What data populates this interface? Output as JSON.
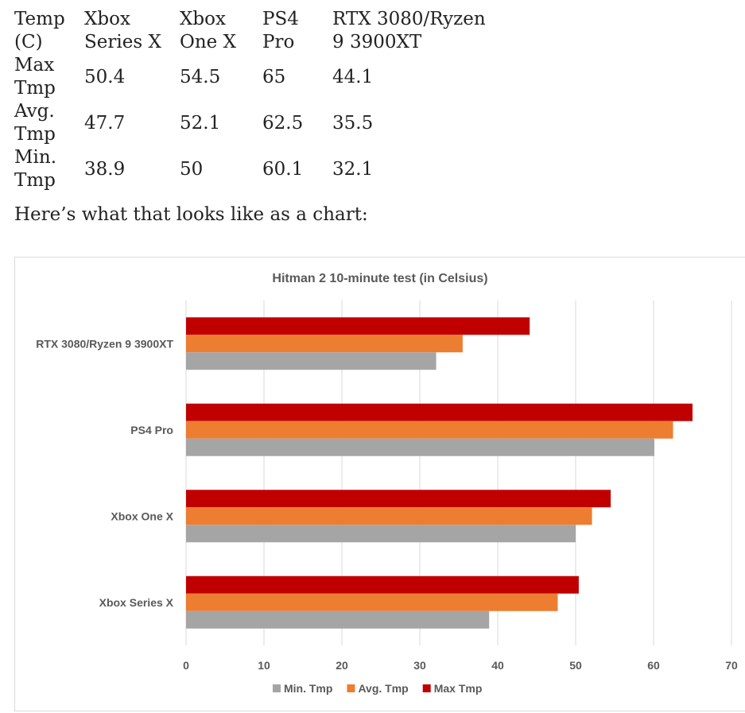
{
  "table": {
    "header": [
      "Temp (C)",
      "Xbox Series X",
      "Xbox One X",
      "PS4 Pro",
      "RTX 3080/Ryzen 9 3900XT"
    ],
    "rows": [
      [
        "Max Tmp",
        "50.4",
        "54.5",
        "65",
        "44.1"
      ],
      [
        "Avg. Tmp",
        "47.7",
        "52.1",
        "62.5",
        "35.5"
      ],
      [
        "Min. Tmp",
        "38.9",
        "50",
        "60.1",
        "32.1"
      ]
    ]
  },
  "intro_text": "Here’s what that looks like as a chart:",
  "chart_data": {
    "type": "bar",
    "orientation": "horizontal",
    "title": "Hitman 2 10-minute test (in Celsius)",
    "categories": [
      "Xbox Series X",
      "Xbox One X",
      "PS4 Pro",
      "RTX 3080/Ryzen 9 3900XT"
    ],
    "series": [
      {
        "name": "Min. Tmp",
        "color": "#a5a5a5",
        "values": [
          38.9,
          50,
          60.1,
          32.1
        ]
      },
      {
        "name": "Avg. Tmp",
        "color": "#ed7d31",
        "values": [
          47.7,
          52.1,
          62.5,
          35.5
        ]
      },
      {
        "name": "Max Tmp",
        "color": "#c00000",
        "values": [
          50.4,
          54.5,
          65,
          44.1
        ]
      }
    ],
    "xlim": [
      0,
      70
    ],
    "xticks": [
      "0",
      "10",
      "20",
      "30",
      "40",
      "50",
      "60",
      "70"
    ],
    "grid": true,
    "legend_position": "bottom"
  }
}
